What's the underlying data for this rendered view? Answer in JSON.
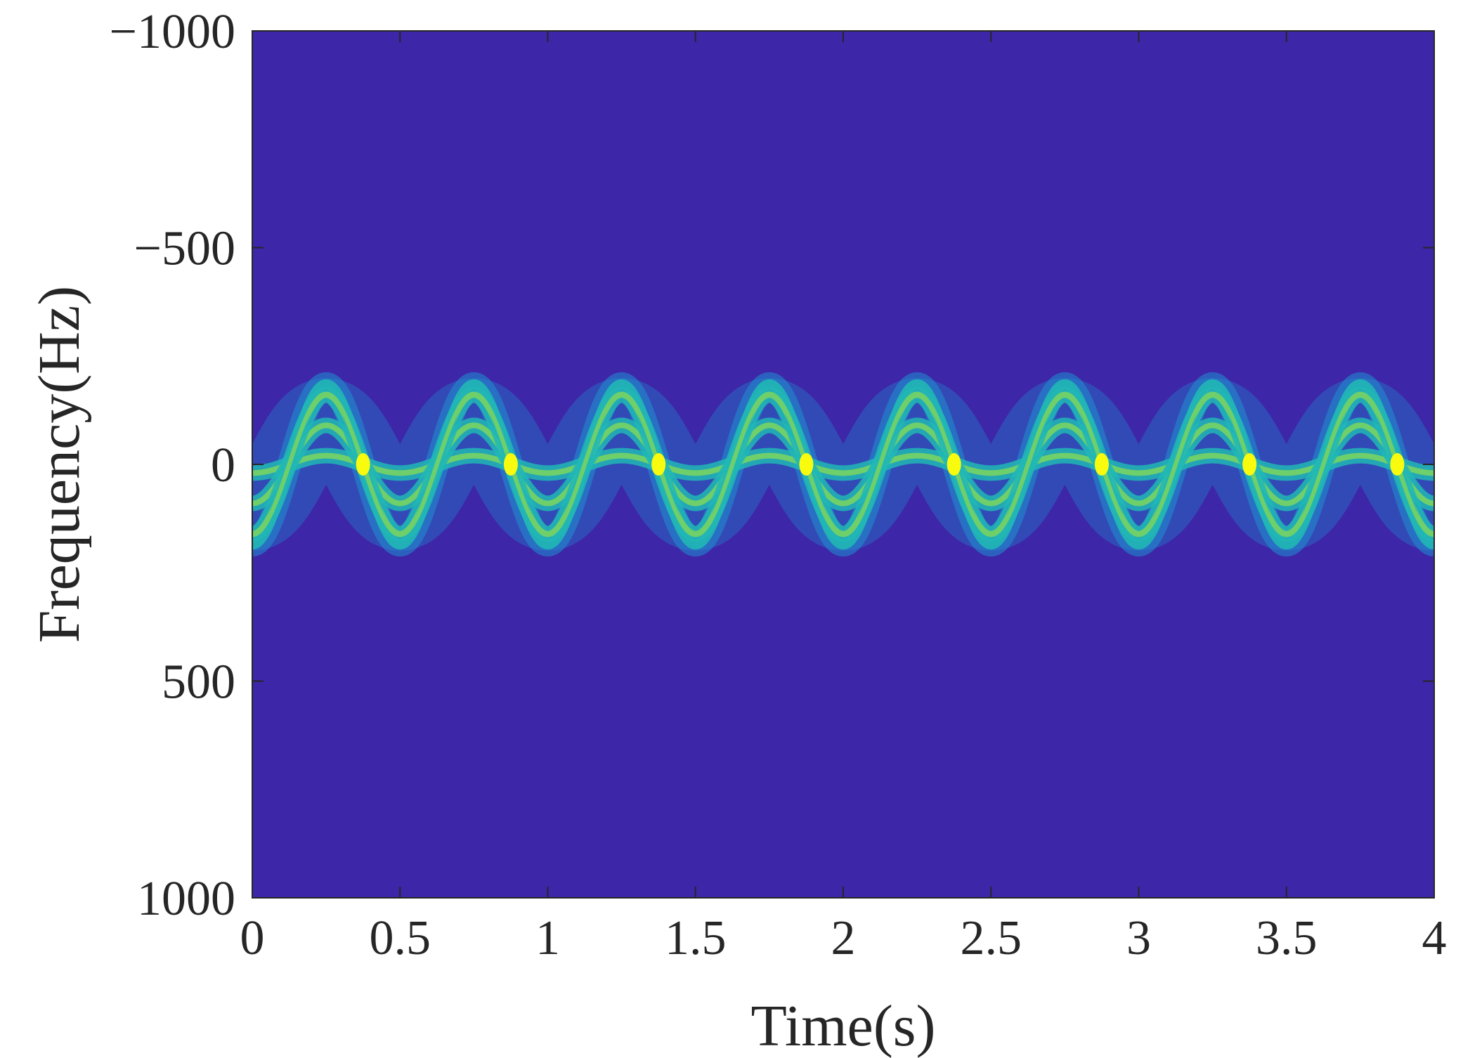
{
  "chart_data": {
    "type": "heatmap",
    "title": "",
    "xlabel": "Time(s)",
    "ylabel": "Frequency(Hz)",
    "xlim": [
      0,
      4
    ],
    "ylim": [
      -1000,
      1000
    ],
    "y_axis_reversed": true,
    "x_ticks": [
      0,
      0.5,
      1,
      1.5,
      2,
      2.5,
      3,
      3.5,
      4
    ],
    "x_tick_labels": [
      "0",
      "0.5",
      "1",
      "1.5",
      "2",
      "2.5",
      "3",
      "3.5",
      "4"
    ],
    "y_ticks": [
      -1000,
      -500,
      0,
      500,
      1000
    ],
    "y_tick_labels": [
      "−1000",
      "−500",
      "0",
      "500",
      "1000"
    ],
    "grid": false,
    "legend": "none",
    "colormap": "parula",
    "colors": {
      "background": "#3d26a8",
      "band_edge": "#1f8fd0",
      "band": "#21b7b5",
      "ridge": "#6fcf6a",
      "peak": "#f9fb0e"
    },
    "signal": {
      "description_of_ridges": "sinusoidal frequency modulation",
      "modulation_frequency_hz": 2,
      "time_range_s": [
        0,
        4
      ],
      "ridge_amplitudes_hz": [
        20,
        90,
        160
      ],
      "band_amplitude_hz": 185,
      "peak_crossing_times_s": [
        0.375,
        0.875,
        1.375,
        1.875,
        2.375,
        2.875,
        3.375,
        3.875
      ]
    }
  }
}
